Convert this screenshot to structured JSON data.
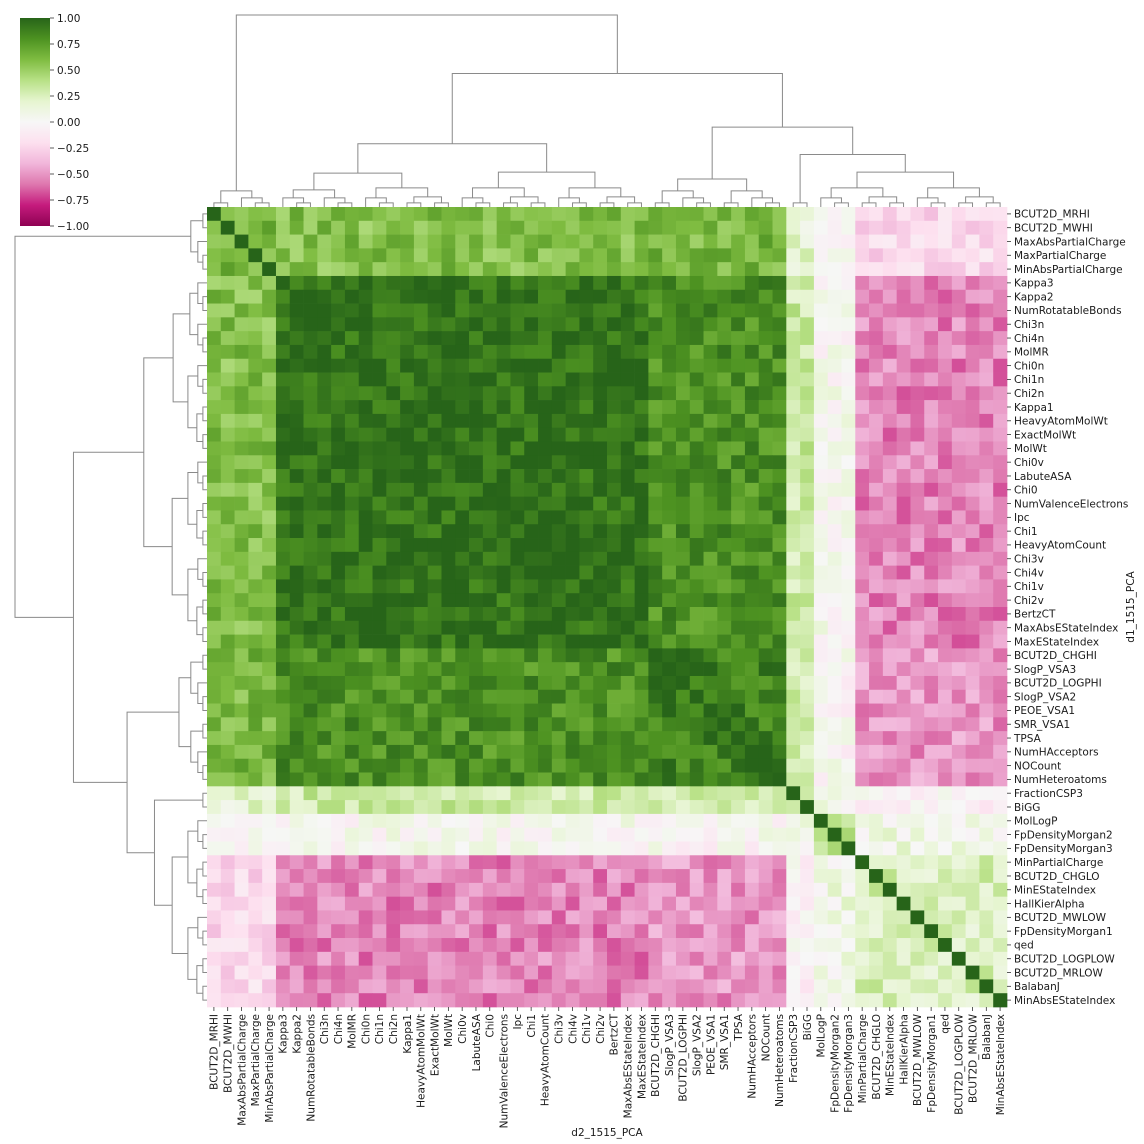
{
  "chart_data": {
    "type": "heatmap",
    "subtype": "clustermap",
    "xlabel": "d2_1515_PCA",
    "ylabel": "d1_1515_PCA",
    "colormap": "PiYG",
    "vmin": -1.0,
    "vmax": 1.0,
    "colorbar_ticks": [
      "1.00",
      "0.75",
      "0.50",
      "0.25",
      "0.00",
      "−0.25",
      "−0.50",
      "−0.75",
      "−1.00"
    ],
    "colorbar_tick_values": [
      1.0,
      0.75,
      0.5,
      0.25,
      0.0,
      -0.25,
      -0.5,
      -0.75,
      -1.0
    ],
    "row_labels": [
      "BCUT2D_MRHI",
      "BCUT2D_MWHI",
      "MaxAbsPartialCharge",
      "MaxPartialCharge",
      "MinAbsPartialCharge",
      "Kappa3",
      "Kappa2",
      "NumRotatableBonds",
      "Chi3n",
      "Chi4n",
      "MolMR",
      "Chi0n",
      "Chi1n",
      "Chi2n",
      "Kappa1",
      "HeavyAtomMolWt",
      "ExactMolWt",
      "MolWt",
      "Chi0v",
      "LabuteASA",
      "Chi0",
      "NumValenceElectrons",
      "Ipc",
      "Chi1",
      "HeavyAtomCount",
      "Chi3v",
      "Chi4v",
      "Chi1v",
      "Chi2v",
      "BertzCT",
      "MaxAbsEStateIndex",
      "MaxEStateIndex",
      "BCUT2D_CHGHI",
      "SlogP_VSA3",
      "BCUT2D_LOGPHI",
      "SlogP_VSA2",
      "PEOE_VSA1",
      "SMR_VSA1",
      "TPSA",
      "NumHAcceptors",
      "NOCount",
      "NumHeteroatoms",
      "FractionCSP3",
      "BiGG",
      "MolLogP",
      "FpDensityMorgan2",
      "FpDensityMorgan3",
      "MinPartialCharge",
      "BCUT2D_CHGLO",
      "MinEStateIndex",
      "HallKierAlpha",
      "BCUT2D_MWLOW",
      "FpDensityMorgan1",
      "qed",
      "BCUT2D_LOGPLOW",
      "BCUT2D_MRLOW",
      "BalabanJ",
      "MinAbsEStateIndex"
    ],
    "col_labels": [
      "BCUT2D_MRHI",
      "BCUT2D_MWHI",
      "MaxAbsPartialCharge",
      "MaxPartialCharge",
      "MinAbsPartialCharge",
      "Kappa3",
      "Kappa2",
      "NumRotatableBonds",
      "Chi3n",
      "Chi4n",
      "MolMR",
      "Chi0n",
      "Chi1n",
      "Chi2n",
      "Kappa1",
      "HeavyAtomMolWt",
      "ExactMolWt",
      "MolWt",
      "Chi0v",
      "LabuteASA",
      "Chi0",
      "NumValenceElectrons",
      "Ipc",
      "Chi1",
      "HeavyAtomCount",
      "Chi3v",
      "Chi4v",
      "Chi1v",
      "Chi2v",
      "BertzCT",
      "MaxAbsEStateIndex",
      "MaxEStateIndex",
      "BCUT2D_CHGHI",
      "SlogP_VSA3",
      "BCUT2D_LOGPHI",
      "SlogP_VSA2",
      "PEOE_VSA1",
      "SMR_VSA1",
      "TPSA",
      "NumHAcceptors",
      "NOCount",
      "NumHeteroatoms",
      "FractionCSP3",
      "BiGG",
      "MolLogP",
      "FpDensityMorgan2",
      "FpDensityMorgan3",
      "MinPartialCharge",
      "BCUT2D_CHGLO",
      "MinEStateIndex",
      "HallKierAlpha",
      "BCUT2D_MWLOW",
      "FpDensityMorgan1",
      "qed",
      "BCUT2D_LOGPLOW",
      "BCUT2D_MRLOW",
      "BalabanJ",
      "MinAbsEStateIndex"
    ],
    "group_boundaries": [
      5,
      32,
      42,
      44
    ],
    "group_corr": {
      "A_A": 0.65,
      "A_B": 0.58,
      "A_C": 0.62,
      "A_D": 0.18,
      "A_E": 0.0,
      "A_F": -0.22,
      "B_B": 0.95,
      "B_C": 0.8,
      "B_D": 0.3,
      "B_E": 0.02,
      "B_F": -0.55,
      "C_C": 0.88,
      "C_D": 0.28,
      "C_E": 0.0,
      "C_F": -0.5,
      "D_D": 0.4,
      "D_E": 0.05,
      "D_F": -0.05,
      "E_E": 0.4,
      "E_F": 0.1,
      "F_F": 0.25
    },
    "row_dendrogram_depth": [
      0.2,
      0.9,
      0.6,
      0.4,
      0.7
    ],
    "col_dendrogram_depth": [
      0.2,
      0.9,
      0.6,
      0.4,
      0.7
    ]
  }
}
